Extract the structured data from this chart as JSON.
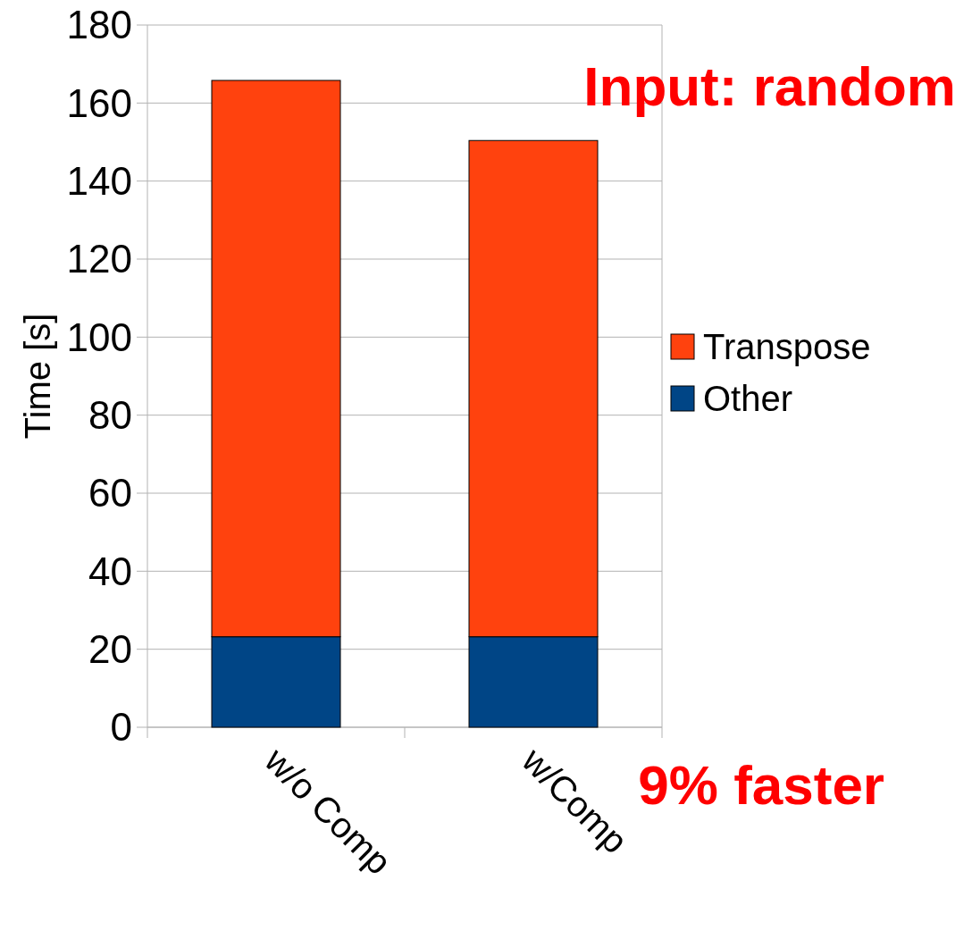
{
  "chart_data": {
    "type": "bar",
    "stacked": true,
    "categories": [
      "w/o Comp",
      "w/Comp"
    ],
    "series": [
      {
        "name": "Other",
        "color": "#004586",
        "values": [
          23.2,
          23.2
        ]
      },
      {
        "name": "Transpose",
        "color": "#ff420e",
        "values": [
          142.6,
          127.2
        ]
      }
    ],
    "ylabel": "Time [s]",
    "ylim": [
      0,
      180
    ],
    "yticks": [
      0,
      20,
      40,
      60,
      80,
      100,
      120,
      140,
      160,
      180
    ],
    "grid": "y",
    "legend": "right",
    "annotations": [
      "Input: random",
      "9% faster"
    ]
  }
}
